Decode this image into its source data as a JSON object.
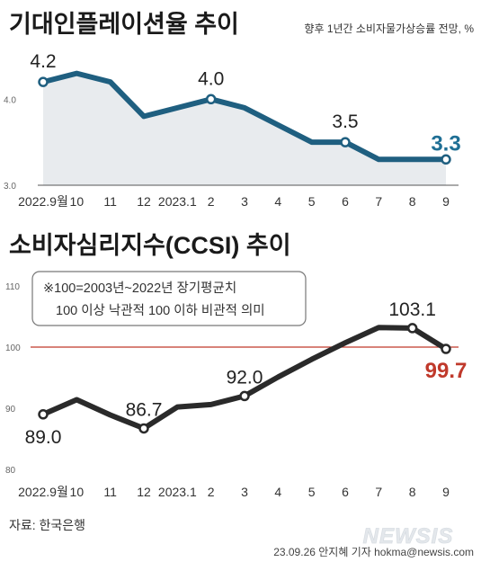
{
  "chart_data": [
    {
      "type": "area",
      "title": "기대인플레이션율 추이",
      "subtitle": "향후 1년간 소비자물가상승률 전망, %",
      "x": [
        "2022.9",
        "10",
        "11",
        "12",
        "2023.1",
        "2",
        "3",
        "4",
        "5",
        "6",
        "7",
        "8",
        "9"
      ],
      "x_tick_labels": [
        "2022.9월",
        "10",
        "11",
        "12",
        "2023.1",
        "2",
        "3",
        "4",
        "5",
        "6",
        "7",
        "8",
        "9"
      ],
      "values": [
        4.2,
        4.3,
        4.2,
        3.8,
        3.9,
        4.0,
        3.9,
        3.7,
        3.5,
        3.5,
        3.3,
        3.3,
        3.3
      ],
      "ylim": [
        3.0,
        4.4
      ],
      "y_ticks": [
        "4.0",
        "3.0"
      ],
      "data_labels": [
        {
          "index": 0,
          "text": "4.2"
        },
        {
          "index": 5,
          "text": "4.0"
        },
        {
          "index": 9,
          "text": "3.5"
        },
        {
          "index": 12,
          "text": "3.3"
        }
      ],
      "colors": {
        "line": "#1f5f80",
        "fill": "#e8ebee",
        "highlight": "#1f6f95"
      }
    },
    {
      "type": "line",
      "title": "소비자심리지수(CCSI) 추이",
      "x": [
        "2022.9",
        "10",
        "11",
        "12",
        "2023.1",
        "2",
        "3",
        "4",
        "5",
        "6",
        "7",
        "8",
        "9"
      ],
      "x_tick_labels": [
        "2022.9월",
        "10",
        "11",
        "12",
        "2023.1",
        "2",
        "3",
        "4",
        "5",
        "6",
        "7",
        "8",
        "9"
      ],
      "values": [
        89.0,
        91.4,
        88.9,
        86.7,
        90.2,
        90.6,
        92.0,
        95.1,
        98.0,
        100.7,
        103.2,
        103.1,
        99.7
      ],
      "ylim": [
        80,
        110
      ],
      "y_ticks": [
        "110",
        "100",
        "90",
        "80"
      ],
      "reference_line": 100,
      "data_labels": [
        {
          "index": 0,
          "text": "89.0"
        },
        {
          "index": 3,
          "text": "86.7"
        },
        {
          "index": 6,
          "text": "92.0"
        },
        {
          "index": 11,
          "text": "103.1"
        },
        {
          "index": 12,
          "text": "99.7"
        }
      ],
      "note_lines": [
        "※100=2003년~2022년 장기평균치",
        "100 이상 낙관적 100 이하 비관적 의미"
      ],
      "colors": {
        "line": "#2a2a2a",
        "reference": "#c0392b",
        "highlight": "#c0392b"
      }
    }
  ],
  "source": "자료: 한국은행",
  "credit": "23.09.26 안지혜 기자 hokma@newsis.com",
  "logo": "NEWSIS"
}
